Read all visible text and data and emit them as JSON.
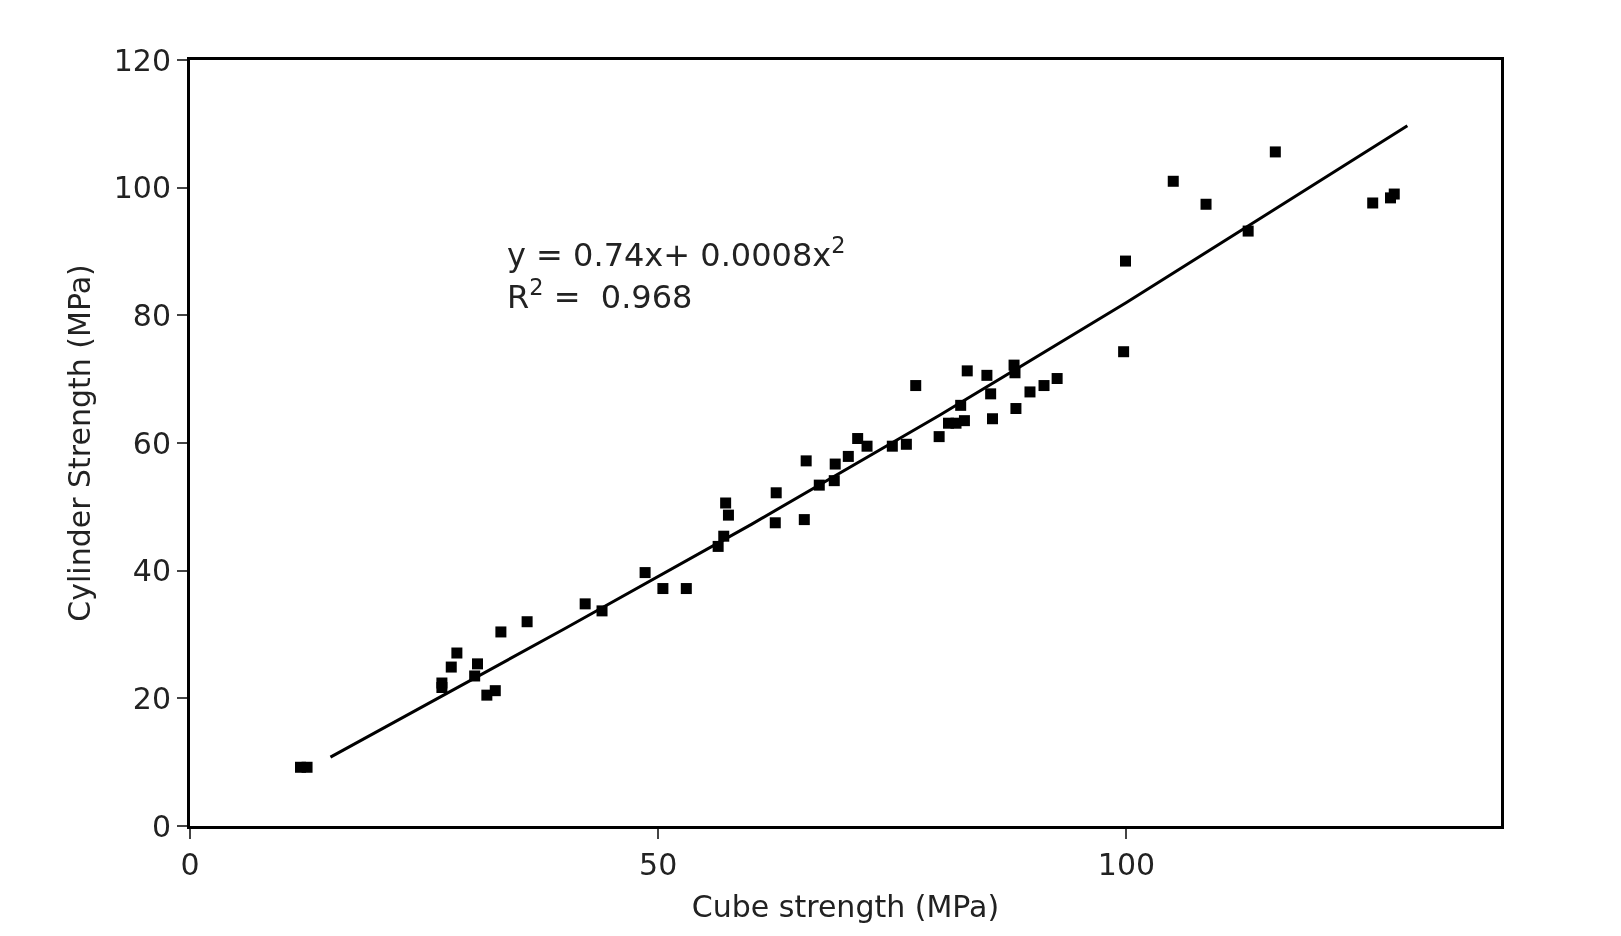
{
  "chart_data": {
    "type": "scatter",
    "xlabel": "Cube strength (MPa)",
    "ylabel": "Cylinder Strength (MPa)",
    "xlim": [
      0,
      140
    ],
    "xticks": [
      0,
      50,
      100
    ],
    "ylim": [
      0,
      120
    ],
    "yticks": [
      0,
      20,
      40,
      60,
      80,
      100,
      120
    ],
    "marker": "square",
    "annotations": [
      "y = 0.74x+ 0.0008x$^{2}$\nR$^{2}$ =  0.968"
    ],
    "series": [
      {
        "color": "#000000",
        "x": [
          11.8,
          12.5,
          26.9,
          26.9,
          27.9,
          28.5,
          30.4,
          30.7,
          31.7,
          32.6,
          33.2,
          36.0,
          42.2,
          44.0,
          48.6,
          50.5,
          53.0,
          56.4,
          57.0,
          57.2,
          57.5,
          62.5,
          62.6,
          65.6,
          65.8,
          67.2,
          68.8,
          68.9,
          70.3,
          71.3,
          72.3,
          75.0,
          76.5,
          77.5,
          80.0,
          81.0,
          81.8,
          82.3,
          82.7,
          83.0,
          85.1,
          85.5,
          85.7,
          88.0,
          88.1,
          88.2,
          89.7,
          91.2,
          92.6,
          99.9,
          99.7,
          105.0,
          108.5,
          113.0,
          115.9,
          126.3,
          128.2,
          128.6
        ],
        "values": [
          9.2,
          9.2,
          21.7,
          22.4,
          24.9,
          27.1,
          23.5,
          25.4,
          20.5,
          21.2,
          30.4,
          32.0,
          34.8,
          33.7,
          39.7,
          37.2,
          37.2,
          43.8,
          45.4,
          50.6,
          48.7,
          47.5,
          52.2,
          48.0,
          57.2,
          53.4,
          54.1,
          56.7,
          57.9,
          60.7,
          59.5,
          59.5,
          59.8,
          69.0,
          61.0,
          63.1,
          63.1,
          65.9,
          63.5,
          71.3,
          70.6,
          67.7,
          63.8,
          72.2,
          71.0,
          65.4,
          68.0,
          69.0,
          70.1,
          88.5,
          74.3,
          101.0,
          97.4,
          93.2,
          105.6,
          97.6,
          98.4,
          99.0
        ]
      },
      {
        "type": "line",
        "color": "#000000",
        "marker": "none",
        "line_style": "solid",
        "x": [
          15,
          40,
          60,
          80,
          100,
          130
        ],
        "values": [
          10.8,
          30.9,
          47.3,
          64.3,
          82.0,
          109.7
        ]
      }
    ]
  }
}
